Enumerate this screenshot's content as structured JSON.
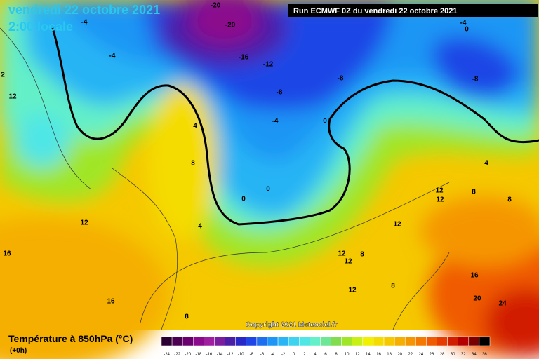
{
  "header": {
    "date": "vendredi 22 octobre 2021",
    "time": "2:00 locale",
    "run": "Run ECMWF 0Z du vendredi 22 octobre 2021"
  },
  "copyright": "Copyright 2021 Meteociel.fr",
  "map_labels": [
    "-20",
    "-20",
    "-16",
    "-12",
    "-8",
    "-8",
    "-4",
    "-4",
    "-4",
    "0",
    "0",
    "0",
    "-4",
    "0",
    "-8",
    "4",
    "8",
    "4",
    "12",
    "2",
    "12",
    "16",
    "16",
    "8",
    "12",
    "12",
    "12",
    "8",
    "4",
    "8",
    "12",
    "12",
    "8",
    "12",
    "8",
    "16",
    "20",
    "24"
  ],
  "legend": {
    "title": "Température à 850hPa (°C)",
    "subtitle": "(+0h)",
    "ticks": [
      -24,
      -22,
      -20,
      -18,
      -16,
      -14,
      -12,
      -10,
      -8,
      -6,
      -4,
      -2,
      0,
      2,
      4,
      6,
      8,
      10,
      12,
      14,
      16,
      18,
      20,
      22,
      24,
      26,
      28,
      30,
      32,
      34,
      36
    ],
    "colors": [
      "#2a0030",
      "#4b0050",
      "#6a006e",
      "#8c0a8c",
      "#a01ea0",
      "#7a1e9e",
      "#4b1ea8",
      "#2828c8",
      "#1e46e6",
      "#1e6ef0",
      "#1e96f5",
      "#28b4f5",
      "#3cd2f0",
      "#50e6e6",
      "#64f0c8",
      "#6ee696",
      "#82dc50",
      "#a0e628",
      "#c8f014",
      "#f0f000",
      "#f5dc00",
      "#f5c800",
      "#f5af00",
      "#f59600",
      "#f57800",
      "#f05a00",
      "#e63c00",
      "#d21e00",
      "#b40000",
      "#780000",
      "#000000"
    ]
  }
}
